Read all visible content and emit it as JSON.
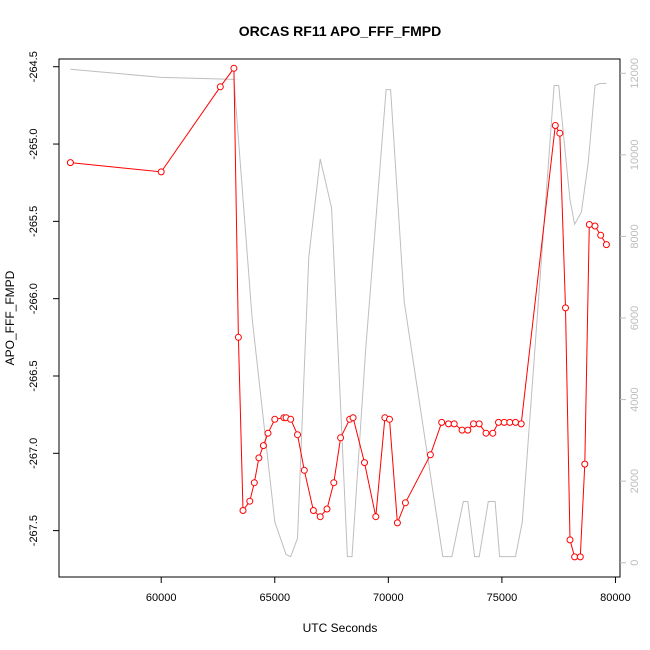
{
  "chart_data": {
    "type": "line",
    "title": "ORCAS RF11 APO_FFF_FMPD",
    "xlabel": "UTC Seconds",
    "ylabel": "APO_FFF_FMPD",
    "xlim": [
      55500,
      80200
    ],
    "ylim": [
      -267.8,
      -264.45
    ],
    "y2lim": [
      -350,
      12350
    ],
    "grid": false,
    "x_ticks": [
      60000,
      65000,
      70000,
      75000,
      80000
    ],
    "y_ticks": [
      -267.5,
      -267.0,
      -266.5,
      -266.0,
      -265.5,
      -265.0,
      -264.5
    ],
    "y_tick_labels": [
      "-267.5",
      "-267.0",
      "-266.5",
      "-266.0",
      "-265.5",
      "-265.0",
      "-264.5"
    ],
    "y2_ticks": [
      0,
      2000,
      4000,
      6000,
      8000,
      10000,
      12000
    ],
    "colors": {
      "primary": "#ff0000",
      "secondary": "#bebebe"
    },
    "series": [
      {
        "axis": "left",
        "style": "line+open-circle",
        "color": "#ff0000",
        "x": [
          56000,
          60000,
          62600,
          63200,
          63400,
          63600,
          63900,
          64100,
          64300,
          64500,
          64700,
          65000,
          65400,
          65500,
          65700,
          66000,
          66300,
          66700,
          67000,
          67300,
          67600,
          67900,
          68300,
          68450,
          68950,
          69450,
          69850,
          70050,
          70400,
          70750,
          71850,
          72350,
          72650,
          72900,
          73250,
          73500,
          73750,
          74000,
          74300,
          74600,
          74850,
          75100,
          75350,
          75600,
          75850,
          77350,
          77550,
          77800,
          78000,
          78200,
          78450,
          78650,
          78850,
          79100,
          79350,
          79600
        ],
        "y": [
          -265.12,
          -265.18,
          -264.63,
          -264.51,
          -266.25,
          -267.37,
          -267.31,
          -267.19,
          -267.03,
          -266.95,
          -266.87,
          -266.78,
          -266.77,
          -266.77,
          -266.78,
          -266.88,
          -267.11,
          -267.37,
          -267.41,
          -267.36,
          -267.19,
          -266.9,
          -266.78,
          -266.77,
          -267.06,
          -267.41,
          -266.77,
          -266.78,
          -267.45,
          -267.32,
          -267.01,
          -266.8,
          -266.81,
          -266.81,
          -266.85,
          -266.85,
          -266.81,
          -266.81,
          -266.87,
          -266.87,
          -266.8,
          -266.8,
          -266.8,
          -266.8,
          -266.81,
          -264.88,
          -264.93,
          -266.06,
          -267.56,
          -267.67,
          -267.67,
          -267.07,
          -265.52,
          -265.53,
          -265.59,
          -265.65
        ]
      },
      {
        "axis": "right",
        "style": "line",
        "color": "#bebebe",
        "x": [
          56000,
          60000,
          63200,
          64000,
          65000,
          65500,
          65700,
          66000,
          66500,
          67000,
          67500,
          68200,
          68400,
          69000,
          69900,
          70100,
          70700,
          72400,
          72800,
          73300,
          73500,
          73800,
          74000,
          74400,
          74700,
          74900,
          75600,
          75900,
          77300,
          77500,
          77800,
          78000,
          78200,
          78500,
          78800,
          79100,
          79300,
          79600
        ],
        "y": [
          12100,
          11900,
          11850,
          6000,
          1000,
          200,
          150,
          600,
          7500,
          9900,
          8700,
          150,
          150,
          5200,
          11600,
          11600,
          6400,
          150,
          150,
          1500,
          1500,
          150,
          150,
          1500,
          1500,
          150,
          150,
          1000,
          11700,
          11700,
          10000,
          8900,
          8300,
          8600,
          9800,
          11700,
          11750,
          11750
        ]
      }
    ]
  }
}
